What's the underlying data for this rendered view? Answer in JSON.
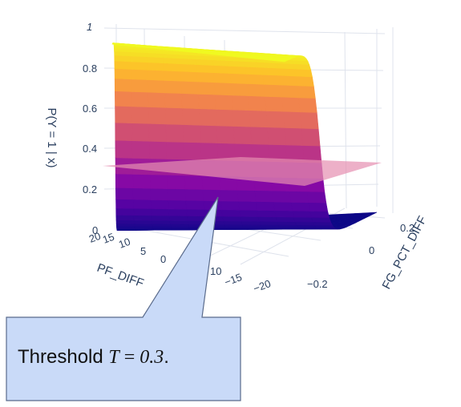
{
  "chart_data": {
    "type": "surface",
    "zlabel": "P(Y = 1 | x)",
    "xlabel": "PF_DIFF",
    "ylabel": "FG_PCT_DIFF",
    "z_ticks": [
      "0",
      "0.2",
      "0.4",
      "0.6",
      "0.8",
      "1"
    ],
    "x_ticks": [
      "20",
      "15",
      "10",
      "5",
      "0",
      "10",
      "−15",
      "−20"
    ],
    "y_ticks": [
      "0.2",
      "0",
      "−0.2"
    ],
    "zlim": [
      0,
      1
    ],
    "xlim": [
      20,
      -20
    ],
    "ylim": [
      -0.25,
      0.25
    ],
    "surface": {
      "function": "logistic",
      "description_free": true,
      "colorscale": [
        "#0d0887",
        "#5302a3",
        "#8b0aa5",
        "#b83289",
        "#db5c68",
        "#f48849",
        "#febd2a",
        "#f0f921"
      ],
      "threshold_plane_z": 0.3,
      "threshold_plane_color": "#e58fb0"
    },
    "grid": true
  },
  "callout": {
    "prefix": "Threshold ",
    "var": "T",
    "eq": " = ",
    "value": "0.3",
    "suffix": ".",
    "fill": "#c9daf8",
    "stroke": "#5a6b8c"
  }
}
